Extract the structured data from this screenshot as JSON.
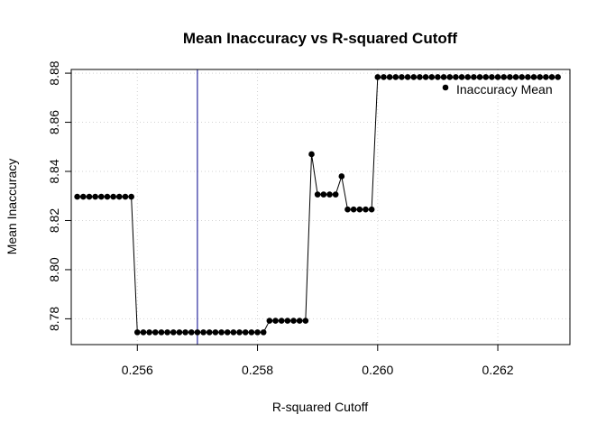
{
  "chart_data": {
    "type": "line",
    "title": "Mean Inaccuracy vs R-squared Cutoff",
    "xlabel": "R-squared Cutoff",
    "ylabel": "Mean Inaccuracy",
    "xlim": [
      0.2549,
      0.2632
    ],
    "ylim": [
      8.7695,
      8.8815
    ],
    "x_ticks": [
      0.256,
      0.258,
      0.26,
      0.262
    ],
    "x_tick_labels": [
      "0.256",
      "0.258",
      "0.260",
      "0.262"
    ],
    "y_ticks": [
      8.78,
      8.8,
      8.82,
      8.84,
      8.86,
      8.88
    ],
    "y_tick_labels": [
      "8.78",
      "8.80",
      "8.82",
      "8.84",
      "8.86",
      "8.88"
    ],
    "grid": true,
    "vline": {
      "x": 0.257,
      "color": "#00008B"
    },
    "legend": {
      "position": "top-right",
      "entries": [
        "Inaccuracy Mean"
      ]
    },
    "series": [
      {
        "name": "Inaccuracy Mean",
        "color": "#000000",
        "x": [
          0.255,
          0.2551,
          0.2552,
          0.2553,
          0.2554,
          0.2555,
          0.2556,
          0.2557,
          0.2558,
          0.2559,
          0.256,
          0.2561,
          0.2562,
          0.2563,
          0.2564,
          0.2565,
          0.2566,
          0.2567,
          0.2568,
          0.2569,
          0.257,
          0.2571,
          0.2572,
          0.2573,
          0.2574,
          0.2575,
          0.2576,
          0.2577,
          0.2578,
          0.2579,
          0.258,
          0.2581,
          0.2582,
          0.2583,
          0.2584,
          0.2585,
          0.2586,
          0.2587,
          0.2588,
          0.2589,
          0.259,
          0.2591,
          0.2592,
          0.2593,
          0.2594,
          0.2595,
          0.2596,
          0.2597,
          0.2598,
          0.2599,
          0.26,
          0.2601,
          0.2602,
          0.2603,
          0.2604,
          0.2605,
          0.2606,
          0.2607,
          0.2608,
          0.2609,
          0.261,
          0.2611,
          0.2612,
          0.2613,
          0.2614,
          0.2615,
          0.2616,
          0.2617,
          0.2618,
          0.2619,
          0.262,
          0.2621,
          0.2622,
          0.2623,
          0.2624,
          0.2625,
          0.2626,
          0.2627,
          0.2628,
          0.2629,
          0.263
        ],
        "y": [
          8.8297,
          8.8297,
          8.8297,
          8.8297,
          8.8297,
          8.8297,
          8.8297,
          8.8297,
          8.8297,
          8.8297,
          8.7745,
          8.7745,
          8.7745,
          8.7745,
          8.7745,
          8.7745,
          8.7745,
          8.7745,
          8.7745,
          8.7745,
          8.7745,
          8.7745,
          8.7745,
          8.7745,
          8.7745,
          8.7745,
          8.7745,
          8.7745,
          8.7745,
          8.7745,
          8.7745,
          8.7745,
          8.7792,
          8.7792,
          8.7792,
          8.7792,
          8.7792,
          8.7792,
          8.7792,
          8.847,
          8.8306,
          8.8306,
          8.8306,
          8.8306,
          8.838,
          8.8245,
          8.8245,
          8.8245,
          8.8245,
          8.8245,
          8.8784,
          8.8784,
          8.8784,
          8.8784,
          8.8784,
          8.8784,
          8.8784,
          8.8784,
          8.8784,
          8.8784,
          8.8784,
          8.8784,
          8.8784,
          8.8784,
          8.8784,
          8.8784,
          8.8784,
          8.8784,
          8.8784,
          8.8784,
          8.8784,
          8.8784,
          8.8784,
          8.8784,
          8.8784,
          8.8784,
          8.8784,
          8.8784,
          8.8784,
          8.8784,
          8.8784
        ]
      }
    ]
  }
}
